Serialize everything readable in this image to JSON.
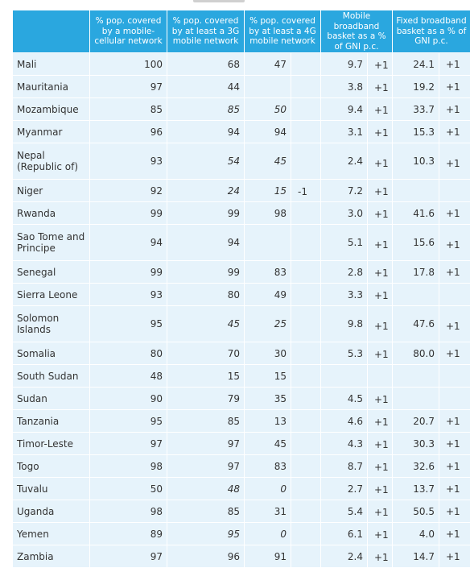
{
  "headers": [
    "",
    "% pop. covered by a mobile-cellular network",
    "% pop. covered by at least a 3G mobile network",
    "% pop. covered by at least a 4G mobile network",
    "Mobile broadband basket as a % of GNI p.c.",
    "Fixed broadband basket as a % of GNI p.c."
  ],
  "rows": [
    {
      "country": "Mali",
      "cell": "100",
      "g3": "68",
      "g4": "47",
      "g4_note": "",
      "mob": "9.7",
      "mob_note": "+1",
      "fix": "24.1",
      "fix_note": "+1"
    },
    {
      "country": "Mauritania",
      "cell": "97",
      "g3": "44",
      "g4": "",
      "g4_note": "",
      "mob": "3.8",
      "mob_note": "+1",
      "fix": "19.2",
      "fix_note": "+1"
    },
    {
      "country": "Mozambique",
      "cell": "85",
      "g3": "85",
      "g3_i": true,
      "g4": "50",
      "g4_i": true,
      "g4_note": "",
      "mob": "9.4",
      "mob_note": "+1",
      "fix": "33.7",
      "fix_note": "+1"
    },
    {
      "country": "Myanmar",
      "cell": "96",
      "g3": "94",
      "g4": "94",
      "g4_note": "",
      "mob": "3.1",
      "mob_note": "+1",
      "fix": "15.3",
      "fix_note": "+1"
    },
    {
      "country": "Nepal (Republic of)",
      "cell": "93",
      "g3": "54",
      "g3_i": true,
      "g4": "45",
      "g4_i": true,
      "g4_note": "",
      "mob": "2.4",
      "mob_note": "+1",
      "fix": "10.3",
      "fix_note": "+1",
      "tall": true
    },
    {
      "country": "Niger",
      "cell": "92",
      "g3": "24",
      "g3_i": true,
      "g4": "15",
      "g4_i": true,
      "g4_note": "-1",
      "mob": "7.2",
      "mob_note": "+1",
      "fix": "",
      "fix_note": ""
    },
    {
      "country": "Rwanda",
      "cell": "99",
      "g3": "99",
      "g4": "98",
      "g4_note": "",
      "mob": "3.0",
      "mob_note": "+1",
      "fix": "41.6",
      "fix_note": "+1"
    },
    {
      "country": "Sao Tome and Principe",
      "cell": "94",
      "g3": "94",
      "g4": "",
      "g4_note": "",
      "mob": "5.1",
      "mob_note": "+1",
      "fix": "15.6",
      "fix_note": "+1",
      "tall": true
    },
    {
      "country": "Senegal",
      "cell": "99",
      "g3": "99",
      "g4": "83",
      "g4_note": "",
      "mob": "2.8",
      "mob_note": "+1",
      "fix": "17.8",
      "fix_note": "+1"
    },
    {
      "country": "Sierra Leone",
      "cell": "93",
      "g3": "80",
      "g4": "49",
      "g4_note": "",
      "mob": "3.3",
      "mob_note": "+1",
      "fix": "",
      "fix_note": ""
    },
    {
      "country": "Solomon Islands",
      "cell": "95",
      "g3": "45",
      "g3_i": true,
      "g4": "25",
      "g4_i": true,
      "g4_note": "",
      "mob": "9.8",
      "mob_note": "+1",
      "fix": "47.6",
      "fix_note": "+1",
      "tall": true
    },
    {
      "country": "Somalia",
      "cell": "80",
      "g3": "70",
      "g4": "30",
      "g4_note": "",
      "mob": "5.3",
      "mob_note": "+1",
      "fix": "80.0",
      "fix_note": "+1"
    },
    {
      "country": "South Sudan",
      "cell": "48",
      "g3": "15",
      "g4": "15",
      "g4_note": "",
      "mob": "",
      "mob_note": "",
      "fix": "",
      "fix_note": ""
    },
    {
      "country": "Sudan",
      "cell": "90",
      "g3": "79",
      "g4": "35",
      "g4_note": "",
      "mob": "4.5",
      "mob_note": "+1",
      "fix": "",
      "fix_note": ""
    },
    {
      "country": "Tanzania",
      "cell": "95",
      "g3": "85",
      "g4": "13",
      "g4_note": "",
      "mob": "4.6",
      "mob_note": "+1",
      "fix": "20.7",
      "fix_note": "+1"
    },
    {
      "country": "Timor-Leste",
      "cell": "97",
      "g3": "97",
      "g4": "45",
      "g4_note": "",
      "mob": "4.3",
      "mob_note": "+1",
      "fix": "30.3",
      "fix_note": "+1"
    },
    {
      "country": "Togo",
      "cell": "98",
      "g3": "97",
      "g4": "83",
      "g4_note": "",
      "mob": "8.7",
      "mob_note": "+1",
      "fix": "32.6",
      "fix_note": "+1"
    },
    {
      "country": "Tuvalu",
      "cell": "50",
      "g3": "48",
      "g3_i": true,
      "g4": "0",
      "g4_i": true,
      "g4_note": "",
      "mob": "2.7",
      "mob_note": "+1",
      "fix": "13.7",
      "fix_note": "+1"
    },
    {
      "country": "Uganda",
      "cell": "98",
      "g3": "85",
      "g4": "31",
      "g4_note": "",
      "mob": "5.4",
      "mob_note": "+1",
      "fix": "50.5",
      "fix_note": "+1"
    },
    {
      "country": "Yemen",
      "cell": "89",
      "g3": "95",
      "g3_i": true,
      "g4": "0",
      "g4_i": true,
      "g4_note": "",
      "mob": "6.1",
      "mob_note": "+1",
      "fix": "4.0",
      "fix_note": "+1"
    },
    {
      "country": "Zambia",
      "cell": "97",
      "g3": "96",
      "g4": "91",
      "g4_note": "",
      "mob": "2.4",
      "mob_note": "+1",
      "fix": "14.7",
      "fix_note": "+1"
    }
  ],
  "colors": {
    "header_bg": "#2aa7df",
    "row_bg": "#e6f3fb",
    "text": "#333333"
  }
}
